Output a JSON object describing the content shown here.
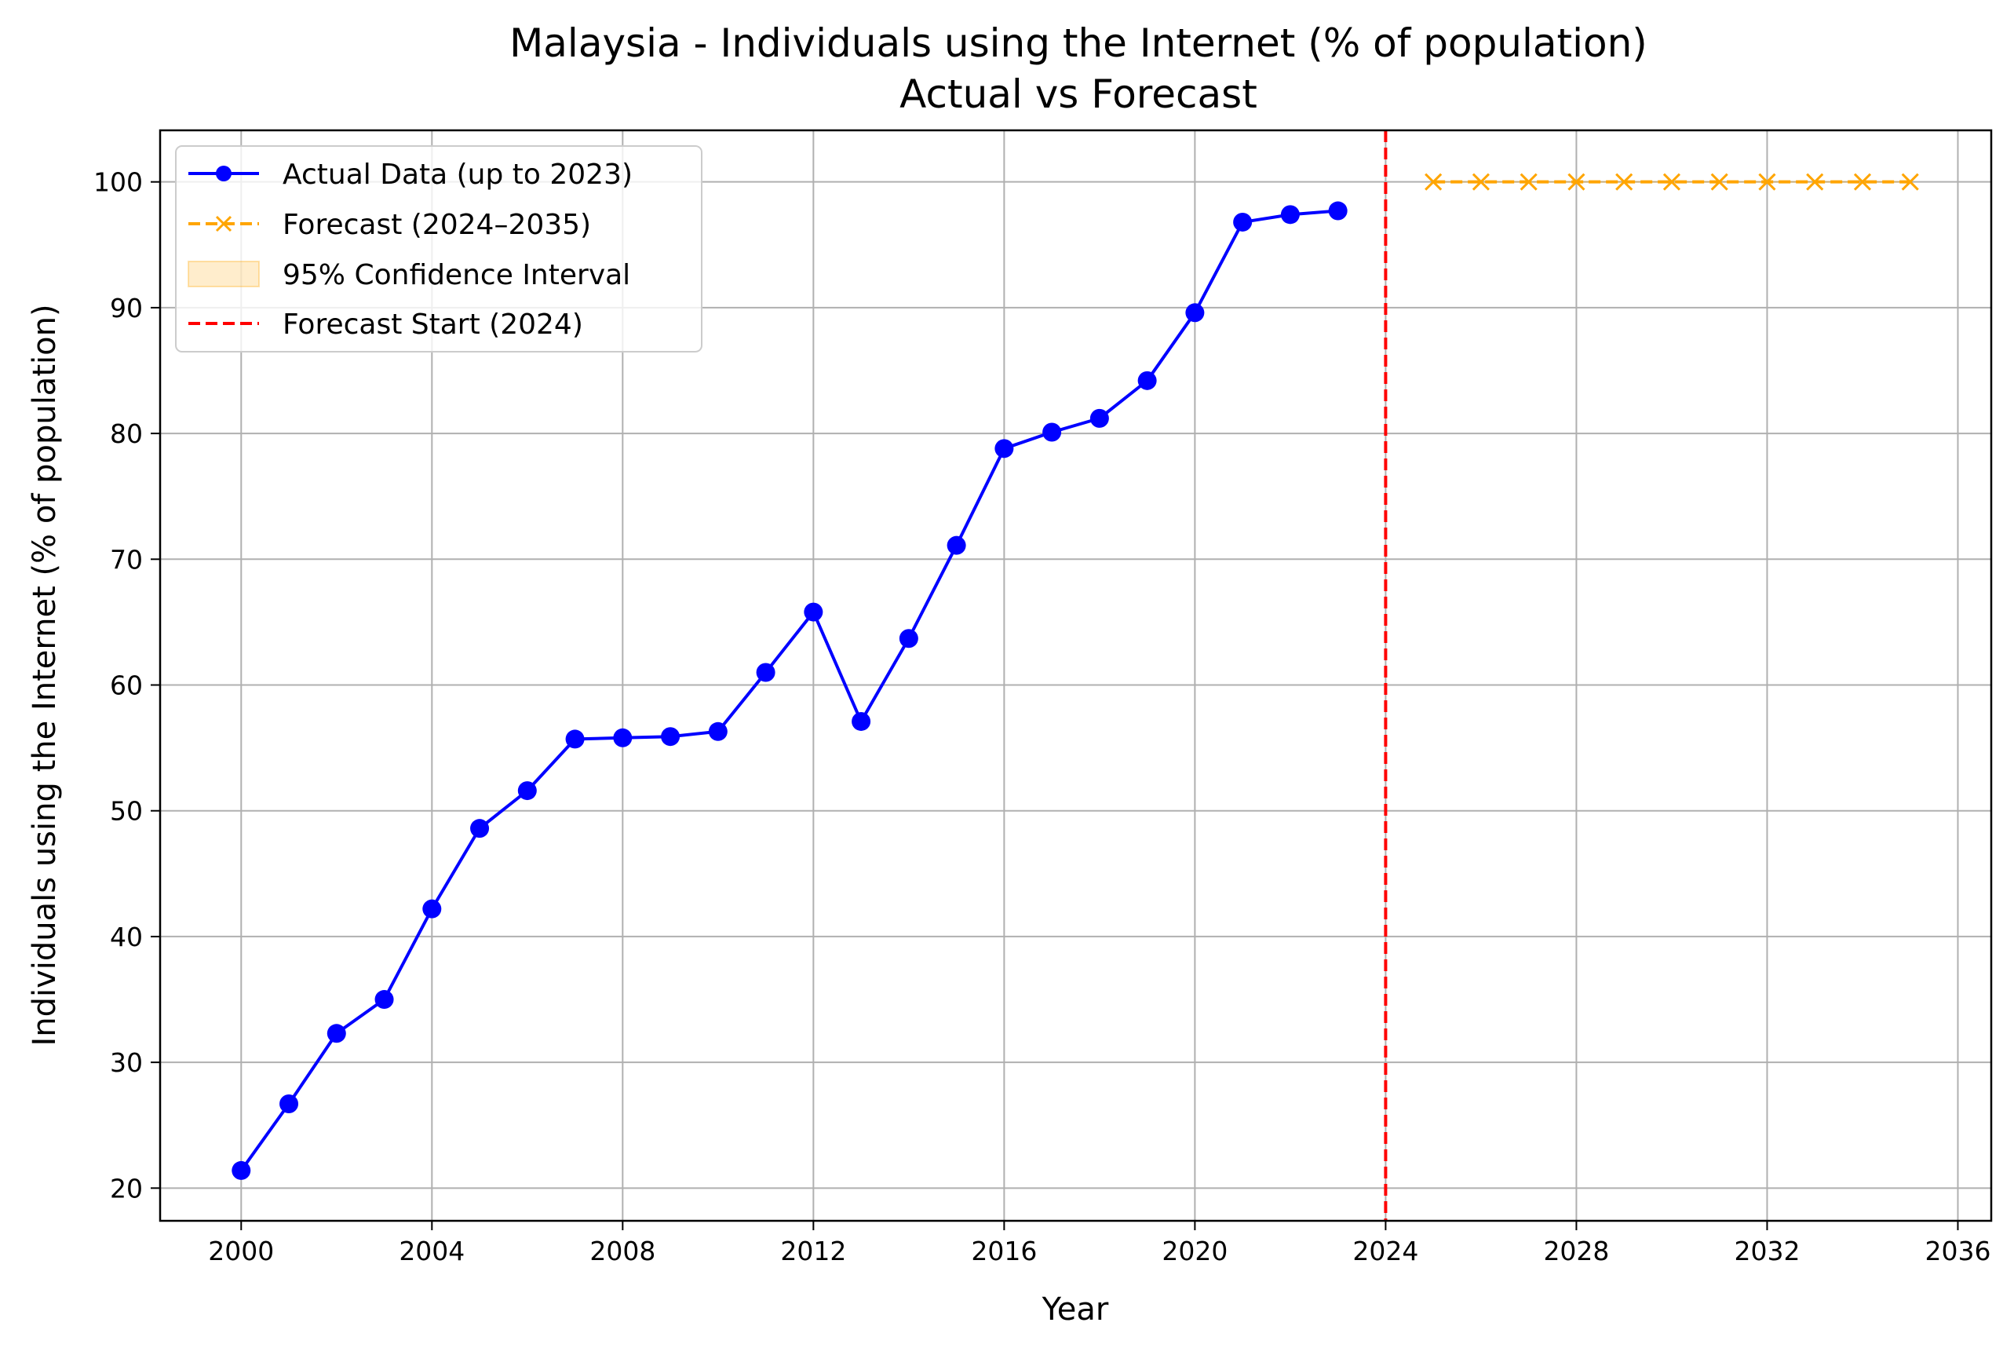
{
  "chart_data": {
    "type": "line",
    "title": "Malaysia - Individuals using the Internet (% of population)",
    "subtitle": "Actual vs Forecast",
    "xlabel": "Year",
    "ylabel": "Individuals using the Internet (% of population)",
    "xlim": [
      1998.3,
      2036.7
    ],
    "ylim": [
      17.4,
      104.1
    ],
    "x_ticks": [
      2000,
      2004,
      2008,
      2012,
      2016,
      2020,
      2024,
      2028,
      2032,
      2036
    ],
    "y_ticks": [
      20,
      30,
      40,
      50,
      60,
      70,
      80,
      90,
      100
    ],
    "grid": true,
    "legend_position": "upper-left",
    "series": [
      {
        "name": "Actual Data (up to 2023)",
        "color": "#0000ff",
        "style": "solid",
        "marker": "circle",
        "x": [
          2000,
          2001,
          2002,
          2003,
          2004,
          2005,
          2006,
          2007,
          2008,
          2009,
          2010,
          2011,
          2012,
          2013,
          2014,
          2015,
          2016,
          2017,
          2018,
          2019,
          2020,
          2021,
          2022,
          2023
        ],
        "y": [
          21.4,
          26.7,
          32.3,
          35.0,
          42.2,
          48.6,
          51.6,
          55.7,
          55.8,
          55.9,
          56.3,
          61.0,
          65.8,
          57.1,
          63.7,
          71.1,
          78.8,
          80.1,
          81.2,
          84.2,
          89.6,
          96.8,
          97.4,
          97.7
        ]
      },
      {
        "name": "Forecast (2024–2035)",
        "color": "#ffa500",
        "style": "dashed",
        "marker": "x",
        "x": [
          2025,
          2026,
          2027,
          2028,
          2029,
          2030,
          2031,
          2032,
          2033,
          2034,
          2035
        ],
        "y": [
          100,
          100,
          100,
          100,
          100,
          100,
          100,
          100,
          100,
          100,
          100
        ]
      }
    ],
    "confidence_interval": {
      "name": "95% Confidence Interval",
      "color": "#ffa500",
      "x": [
        2025,
        2026,
        2027,
        2028,
        2029,
        2030,
        2031,
        2032,
        2033,
        2034,
        2035
      ],
      "lower": [
        100,
        100,
        100,
        100,
        100,
        100,
        100,
        100,
        100,
        100,
        100
      ],
      "upper": [
        100,
        100,
        100,
        100,
        100,
        100,
        100,
        100,
        100,
        100,
        100
      ]
    },
    "vertical_line": {
      "name": "Forecast Start (2024)",
      "x": 2024,
      "color": "#ff0000",
      "style": "dashed"
    }
  }
}
